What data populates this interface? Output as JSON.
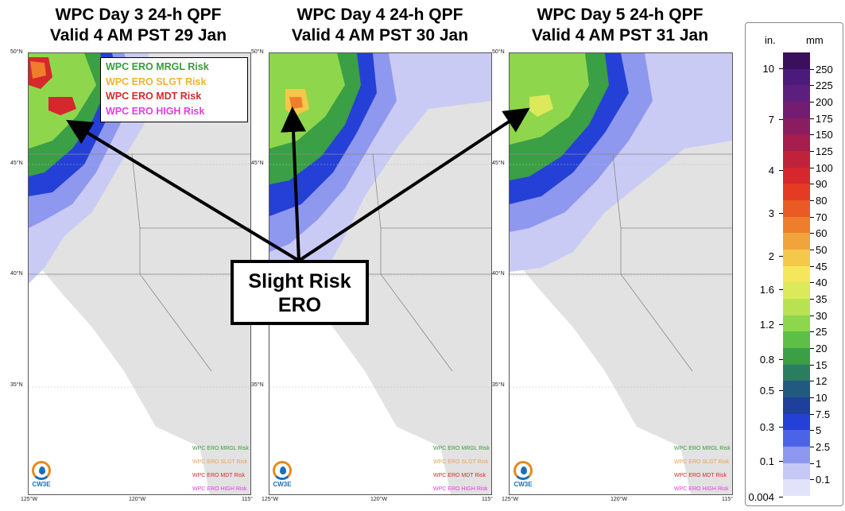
{
  "panels": [
    {
      "title_line1": "WPC Day 3 24-h QPF",
      "title_line2": "Valid 4 AM PST 29 Jan"
    },
    {
      "title_line1": "WPC Day 4 24-h QPF",
      "title_line2": "Valid 4 AM PST 30 Jan"
    },
    {
      "title_line1": "WPC Day 5 24-h QPF",
      "title_line2": "Valid 4 AM PST 31 Jan"
    }
  ],
  "lat_labels": [
    "50°N",
    "45°N",
    "40°N",
    "35°N"
  ],
  "lon_labels": [
    "125°W",
    "120°W",
    "115°"
  ],
  "ero_legend": [
    {
      "label": "WPC ERO MRGL Risk",
      "color": "#3a9b3a"
    },
    {
      "label": "WPC ERO SLGT Risk",
      "color": "#f0b429"
    },
    {
      "label": "WPC ERO MDT Risk",
      "color": "#d42a2a"
    },
    {
      "label": "WPC ERO HIGH Risk",
      "color": "#e040e0"
    }
  ],
  "mini_legend": [
    "WPC ERO MRGL Risk",
    "WPC ERO SLGT Risk",
    "WPC ERO MDT Risk",
    "WPC ERO HIGH Risk"
  ],
  "logo_text": "CW3E",
  "callout": {
    "line1": "Slight Risk",
    "line2": "ERO"
  },
  "colorbar": {
    "unit_in": "in.",
    "unit_mm": "mm",
    "mm_labels": [
      "250",
      "225",
      "200",
      "175",
      "150",
      "125",
      "100",
      "90",
      "80",
      "70",
      "60",
      "50",
      "45",
      "40",
      "35",
      "30",
      "25",
      "20",
      "15",
      "12",
      "10",
      "7.5",
      "5",
      "2.5",
      "1",
      "0.1"
    ],
    "in_labels": [
      "10",
      "7",
      "4",
      "3",
      "2",
      "1.6",
      "1.2",
      "0.8",
      "0.5",
      "0.3",
      "0.1",
      "0.004"
    ],
    "colors": [
      "#3a0f5c",
      "#4b1a7a",
      "#5d1f7e",
      "#731c70",
      "#8a1d5f",
      "#a51e4e",
      "#c0223c",
      "#d5272d",
      "#e33b24",
      "#ea5a24",
      "#ee7e2b",
      "#f1a33c",
      "#f4c84a",
      "#f5e75b",
      "#dbe95a",
      "#b9e252",
      "#8ed64b",
      "#5ebf46",
      "#3a9f45",
      "#2b7d62",
      "#22597f",
      "#1f3f9c",
      "#2540d6",
      "#4c63e8",
      "#8f98ef",
      "#c5c8f5",
      "#e2e2fa"
    ],
    "colors_order_note": "top-to-bottom"
  }
}
